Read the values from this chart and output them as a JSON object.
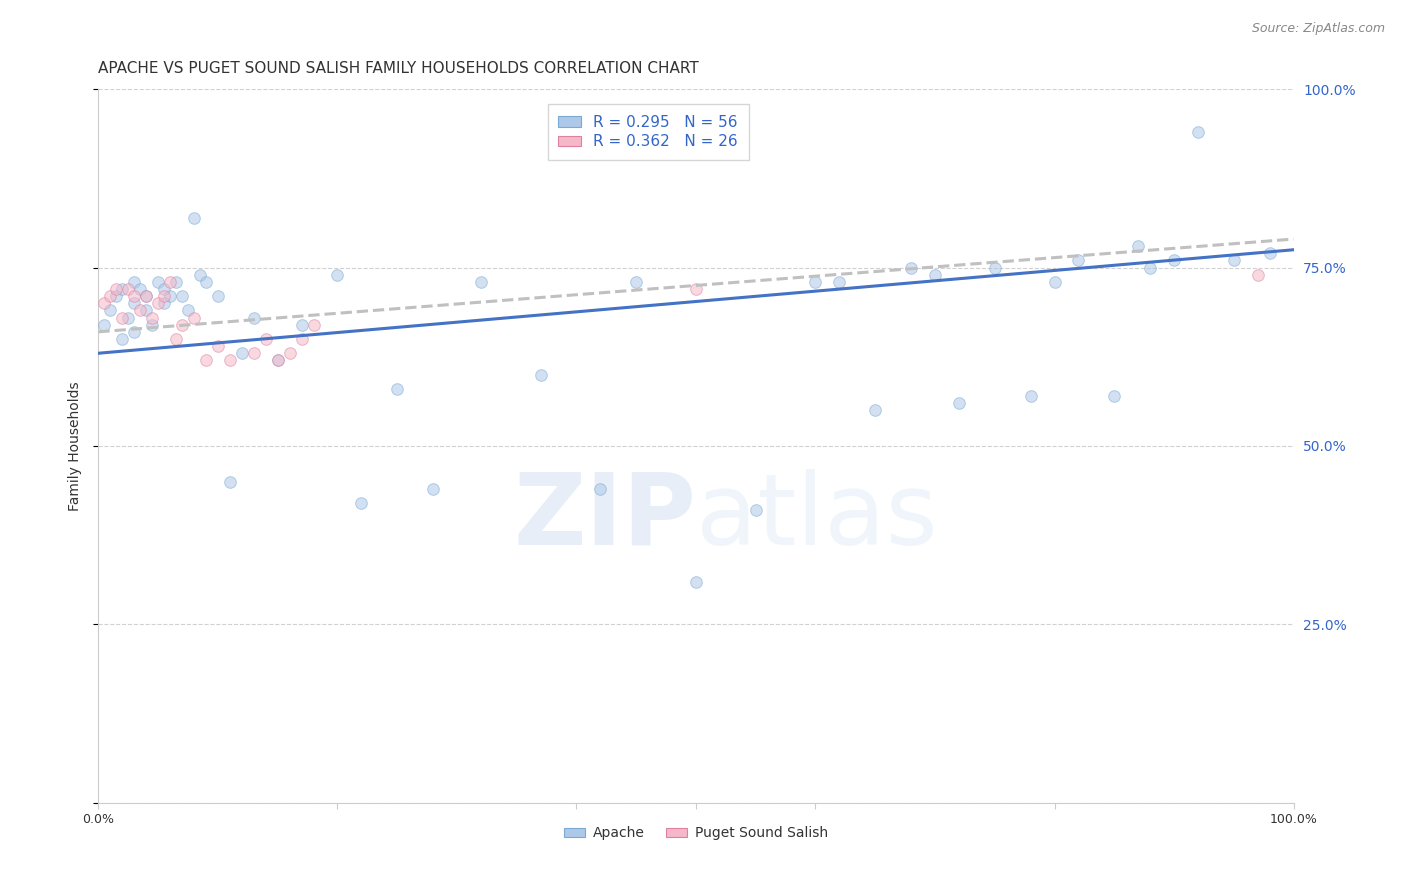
{
  "title": "APACHE VS PUGET SOUND SALISH FAMILY HOUSEHOLDS CORRELATION CHART",
  "source": "Source: ZipAtlas.com",
  "ylabel": "Family Households",
  "xlim": [
    0.0,
    1.0
  ],
  "ylim": [
    0.0,
    1.0
  ],
  "yticks": [
    0.0,
    0.25,
    0.5,
    0.75,
    1.0
  ],
  "ytick_labels": [
    "",
    "25.0%",
    "50.0%",
    "75.0%",
    "100.0%"
  ],
  "apache_color": "#adc8e8",
  "apache_edge_color": "#7aaad4",
  "puget_color": "#f5b8c8",
  "puget_edge_color": "#e080a0",
  "apache_line_color": "#4472c4",
  "puget_line_color": "#c0c0c0",
  "apache_R": 0.295,
  "apache_N": 56,
  "puget_R": 0.362,
  "puget_N": 26,
  "watermark_zip": "ZIP",
  "watermark_atlas": "atlas",
  "background_color": "#ffffff",
  "grid_color": "#cccccc",
  "right_axis_color": "#3366cc",
  "title_fontsize": 11,
  "source_fontsize": 9,
  "legend_fontsize": 11,
  "axis_label_fontsize": 10,
  "marker_size": 70,
  "marker_alpha": 0.55,
  "line_width": 2.2,
  "apache_scatter_x": [
    0.005,
    0.01,
    0.015,
    0.02,
    0.02,
    0.025,
    0.03,
    0.03,
    0.03,
    0.035,
    0.04,
    0.04,
    0.045,
    0.05,
    0.055,
    0.055,
    0.06,
    0.065,
    0.07,
    0.075,
    0.08,
    0.085,
    0.09,
    0.1,
    0.11,
    0.12,
    0.13,
    0.15,
    0.17,
    0.2,
    0.22,
    0.25,
    0.28,
    0.32,
    0.37,
    0.42,
    0.45,
    0.5,
    0.55,
    0.6,
    0.62,
    0.65,
    0.68,
    0.7,
    0.72,
    0.75,
    0.78,
    0.8,
    0.82,
    0.85,
    0.87,
    0.88,
    0.9,
    0.92,
    0.95,
    0.98
  ],
  "apache_scatter_y": [
    0.67,
    0.69,
    0.71,
    0.65,
    0.72,
    0.68,
    0.7,
    0.73,
    0.66,
    0.72,
    0.69,
    0.71,
    0.67,
    0.73,
    0.7,
    0.72,
    0.71,
    0.73,
    0.71,
    0.69,
    0.82,
    0.74,
    0.73,
    0.71,
    0.45,
    0.63,
    0.68,
    0.62,
    0.67,
    0.74,
    0.42,
    0.58,
    0.44,
    0.73,
    0.6,
    0.44,
    0.73,
    0.31,
    0.41,
    0.73,
    0.73,
    0.55,
    0.75,
    0.74,
    0.56,
    0.75,
    0.57,
    0.73,
    0.76,
    0.57,
    0.78,
    0.75,
    0.76,
    0.94,
    0.76,
    0.77
  ],
  "puget_scatter_x": [
    0.005,
    0.01,
    0.015,
    0.02,
    0.025,
    0.03,
    0.035,
    0.04,
    0.045,
    0.05,
    0.055,
    0.06,
    0.065,
    0.07,
    0.08,
    0.09,
    0.1,
    0.11,
    0.13,
    0.14,
    0.15,
    0.16,
    0.17,
    0.18,
    0.5,
    0.97
  ],
  "puget_scatter_y": [
    0.7,
    0.71,
    0.72,
    0.68,
    0.72,
    0.71,
    0.69,
    0.71,
    0.68,
    0.7,
    0.71,
    0.73,
    0.65,
    0.67,
    0.68,
    0.62,
    0.64,
    0.62,
    0.63,
    0.65,
    0.62,
    0.63,
    0.65,
    0.67,
    0.72,
    0.74
  ],
  "apache_line_x": [
    0.0,
    1.0
  ],
  "apache_line_y": [
    0.63,
    0.775
  ],
  "puget_line_x": [
    0.0,
    1.0
  ],
  "puget_line_y": [
    0.66,
    0.79
  ]
}
